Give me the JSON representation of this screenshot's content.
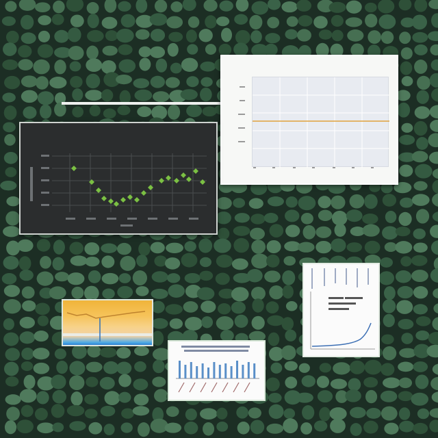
{
  "scene": {
    "background_color": "#1c2e24",
    "pebble_color": "#3f6b4e"
  },
  "panels": {
    "light_chart": {
      "title": "",
      "xlabel": "",
      "line_color": "#e0a23a"
    },
    "dark_chart": {
      "title": "",
      "marker_color": "#7bc043"
    },
    "orange_panel": {},
    "bar_panel": {
      "bar_color": "#5a8fc8"
    },
    "tall_panel": {
      "line_color": "#3c6fb4"
    }
  }
}
